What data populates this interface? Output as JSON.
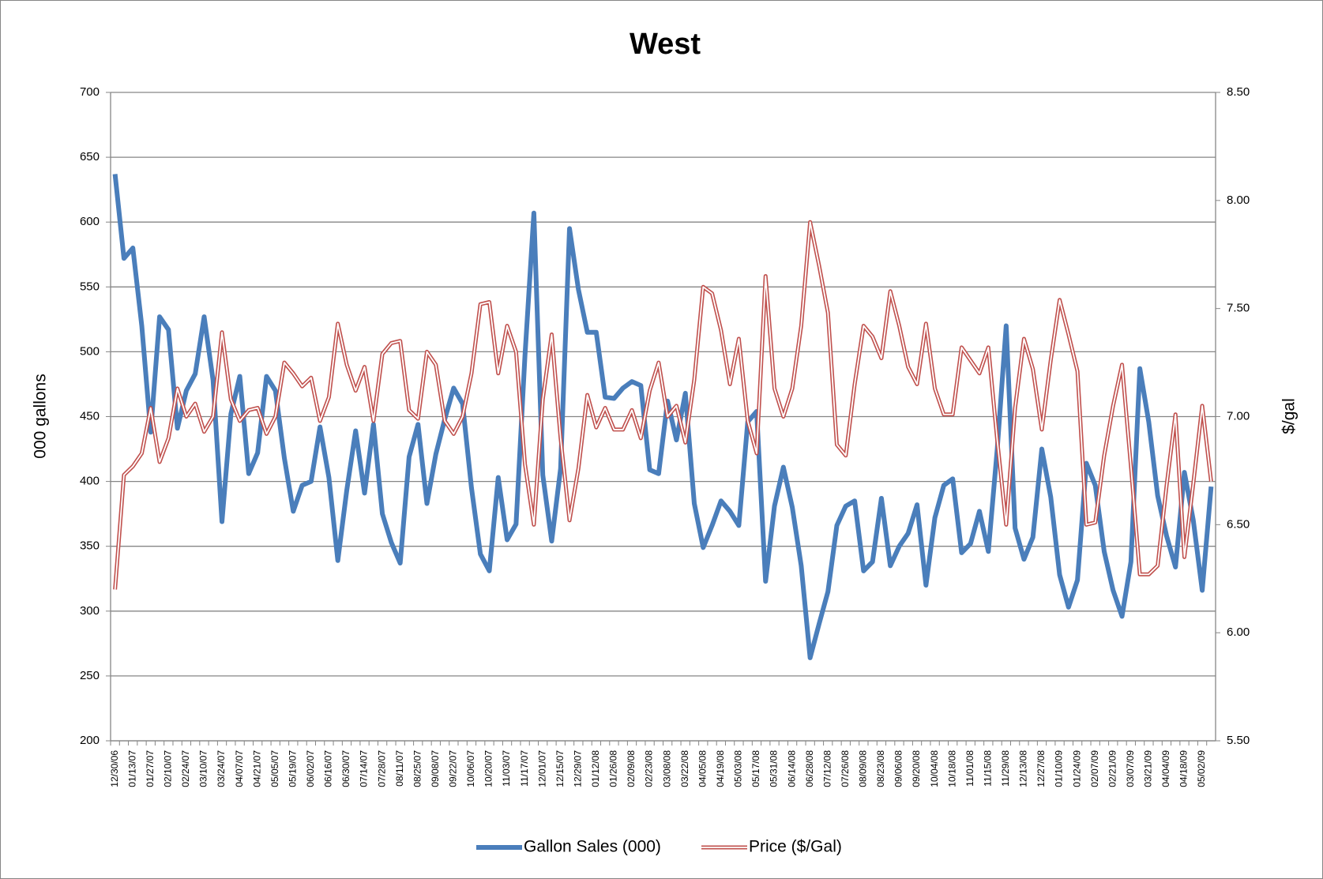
{
  "chart_data": {
    "type": "line",
    "title": "West",
    "y_label": "000 gallons",
    "y2_label": "$/gal",
    "categories": [
      "12/30/06",
      null,
      "01/13/07",
      null,
      "01/27/07",
      null,
      "02/10/07",
      null,
      "02/24/07",
      null,
      "03/10/07",
      null,
      "03/24/07",
      null,
      "04/07/07",
      null,
      "04/21/07",
      null,
      "05/05/07",
      null,
      "05/19/07",
      null,
      "06/02/07",
      null,
      "06/16/07",
      null,
      "06/30/07",
      null,
      "07/14/07",
      null,
      "07/28/07",
      null,
      "08/11/07",
      null,
      "08/25/07",
      null,
      "09/08/07",
      null,
      "09/22/07",
      null,
      "10/06/07",
      null,
      "10/20/07",
      null,
      "11/03/07",
      null,
      "11/17/07",
      null,
      "12/01/07",
      null,
      "12/15/07",
      null,
      "12/29/07",
      null,
      "01/12/08",
      null,
      "01/26/08",
      null,
      "02/09/08",
      null,
      "02/23/08",
      null,
      "03/08/08",
      null,
      "03/22/08",
      null,
      "04/05/08",
      null,
      "04/19/08",
      null,
      "05/03/08",
      null,
      "05/17/08",
      null,
      "05/31/08",
      null,
      "06/14/08",
      null,
      "06/28/08",
      null,
      "07/12/08",
      null,
      "07/26/08",
      null,
      "08/09/08",
      null,
      "08/23/08",
      null,
      "09/06/08",
      null,
      "09/20/08",
      null,
      "10/04/08",
      null,
      "10/18/08",
      null,
      "11/01/08",
      null,
      "11/15/08",
      null,
      "11/29/08",
      null,
      "12/13/08",
      null,
      "12/27/08",
      null,
      "01/10/09",
      null,
      "01/24/09",
      null,
      "02/07/09",
      null,
      "02/21/09",
      null,
      "03/07/09",
      null,
      "03/21/09",
      null,
      "04/04/09",
      null,
      "04/18/09",
      null,
      "05/02/09",
      null
    ],
    "series": [
      {
        "name": "Gallon Sales (000)",
        "color": "#4a7ebb",
        "line_style": "solid",
        "values": [
          637,
          572,
          580,
          520,
          438,
          527,
          517,
          441,
          470,
          483,
          527,
          478,
          369,
          452,
          481,
          406,
          422,
          481,
          470,
          418,
          377,
          397,
          400,
          442,
          403,
          339,
          393,
          439,
          391,
          444,
          375,
          353,
          337,
          419,
          444,
          383,
          421,
          448,
          472,
          460,
          395,
          344,
          331,
          403,
          355,
          367,
          497,
          607,
          405,
          354,
          410,
          595,
          548,
          515,
          515,
          465,
          464,
          472,
          477,
          474,
          409,
          406,
          462,
          432,
          468,
          383,
          349,
          366,
          385,
          377,
          366,
          446,
          454,
          323,
          381,
          411,
          380,
          335,
          264,
          290,
          315,
          366,
          381,
          385,
          331,
          338,
          387,
          335,
          350,
          360,
          382,
          320,
          372,
          397,
          402,
          345,
          352,
          377,
          346,
          425,
          520,
          364,
          340,
          357,
          425,
          388,
          328,
          303,
          324,
          414,
          397,
          346,
          316,
          296,
          338,
          487,
          446,
          389,
          358,
          334,
          407,
          370,
          316,
          396
        ]
      },
      {
        "name": "Price ($/Gal)",
        "color": "#c0504d",
        "line_style": "double",
        "axis": "y2",
        "values": [
          6.2,
          6.73,
          6.77,
          6.83,
          7.04,
          6.79,
          6.9,
          7.13,
          7.0,
          7.06,
          6.93,
          7.0,
          7.39,
          7.08,
          6.98,
          7.03,
          7.04,
          6.92,
          7.0,
          7.25,
          7.2,
          7.14,
          7.18,
          6.98,
          7.09,
          7.43,
          7.24,
          7.12,
          7.23,
          6.98,
          7.29,
          7.34,
          7.35,
          7.03,
          6.99,
          7.3,
          7.24,
          6.98,
          6.92,
          7.0,
          7.2,
          7.52,
          7.53,
          7.2,
          7.42,
          7.3,
          6.78,
          6.5,
          7.08,
          7.38,
          6.9,
          6.52,
          6.76,
          7.1,
          6.95,
          7.04,
          6.94,
          6.94,
          7.03,
          6.9,
          7.12,
          7.25,
          7.0,
          7.05,
          6.88,
          7.17,
          7.6,
          7.57,
          7.4,
          7.15,
          7.36,
          6.98,
          6.83,
          7.65,
          7.13,
          7.0,
          7.13,
          7.42,
          7.9,
          7.7,
          7.48,
          6.87,
          6.82,
          7.15,
          7.42,
          7.37,
          7.27,
          7.58,
          7.42,
          7.23,
          7.15,
          7.43,
          7.13,
          7.01,
          7.01,
          7.32,
          7.26,
          7.2,
          7.32,
          6.89,
          6.5,
          7.04,
          7.36,
          7.22,
          6.94,
          7.26,
          7.54,
          7.38,
          7.21,
          6.5,
          6.51,
          6.82,
          7.05,
          7.24,
          6.77,
          6.27,
          6.27,
          6.31,
          6.68,
          7.01,
          6.35,
          6.69,
          7.05,
          6.7
        ]
      }
    ],
    "ylim": [
      200,
      700
    ],
    "yticks": [
      200,
      250,
      300,
      350,
      400,
      450,
      500,
      550,
      600,
      650,
      700
    ],
    "y2lim": [
      5.5,
      8.5
    ],
    "y2ticks": [
      {
        "value": 5.5,
        "label": "5.50"
      },
      {
        "value": 6,
        "label": "6.00"
      },
      {
        "value": 6.5,
        "label": "6.50"
      },
      {
        "value": 7,
        "label": "7.00"
      },
      {
        "value": 7.5,
        "label": "7.50"
      },
      {
        "value": 8,
        "label": "8.00"
      },
      {
        "value": 8.5,
        "label": "8.50"
      }
    ],
    "grid": true,
    "legend": "bottom"
  }
}
